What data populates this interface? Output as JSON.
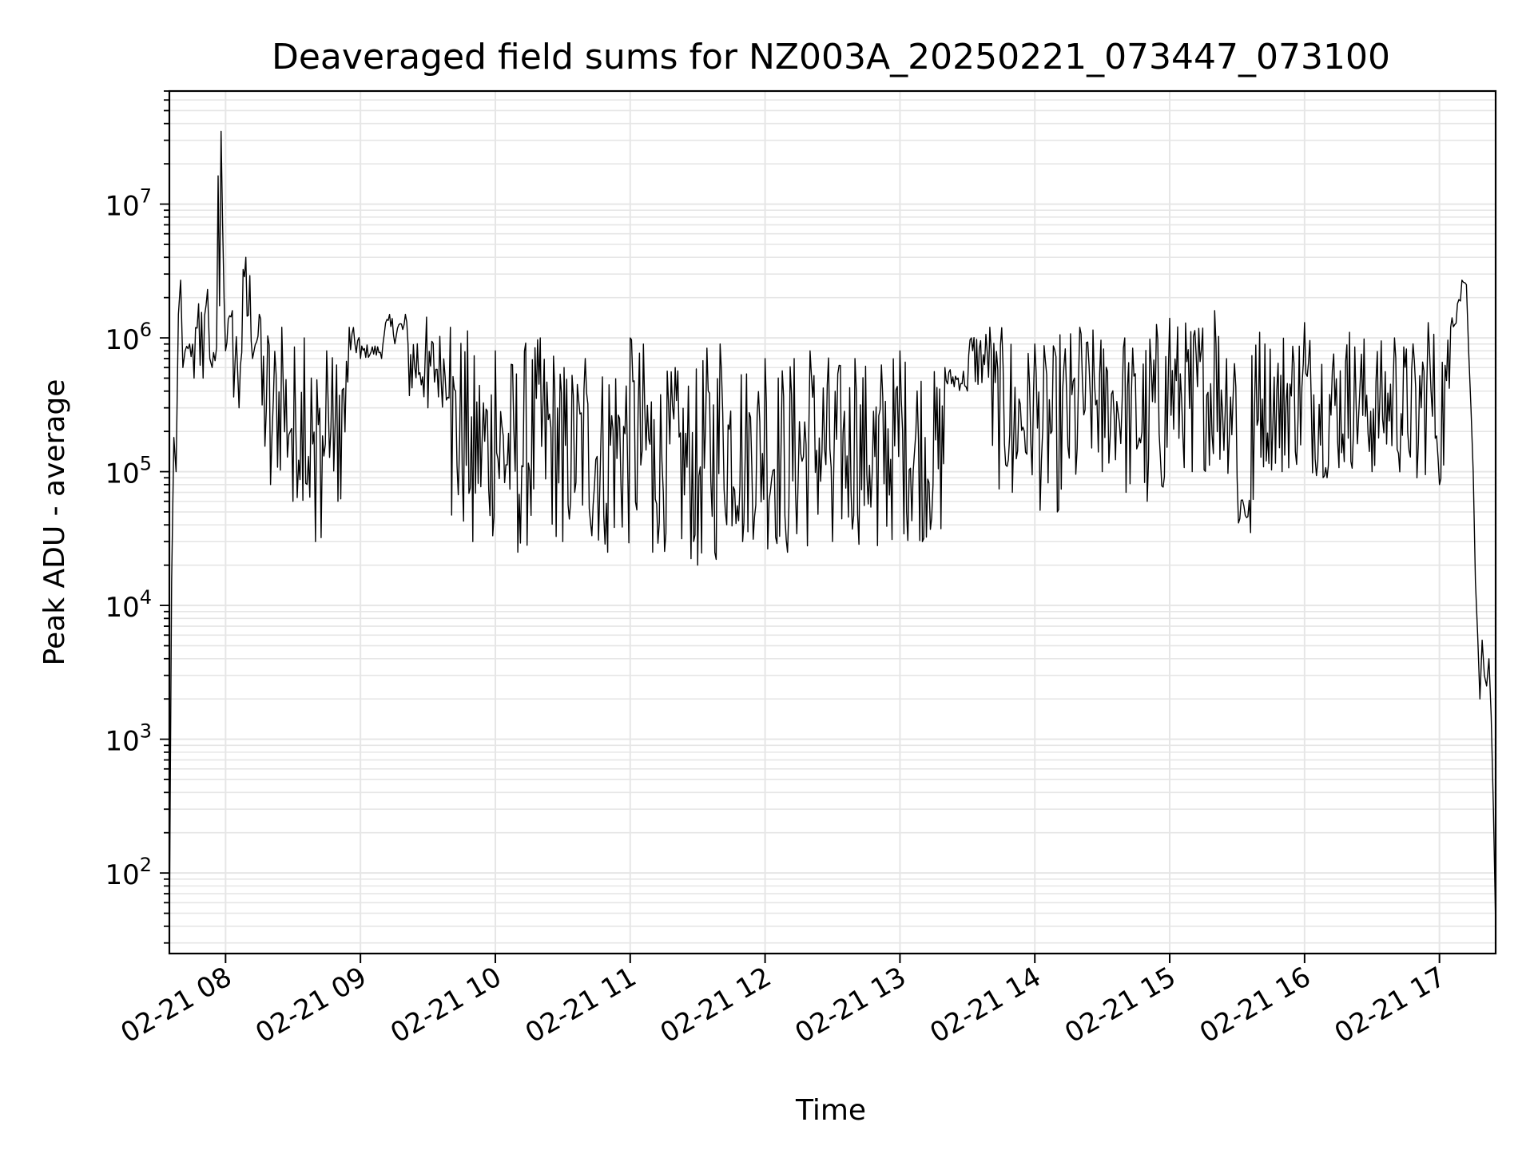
{
  "chart_data": {
    "type": "line",
    "title": "Deaveraged field sums for NZ003A_20250221_073447_073100",
    "xlabel": "Time",
    "ylabel": "Peak ADU - average",
    "yscale": "log",
    "ylim": [
      25,
      70000000
    ],
    "xlim": [
      "02-21 07:35",
      "02-21 17:25"
    ],
    "grid": true,
    "line_color": "#000000",
    "grid_color": "#e6e6e6",
    "xticks": [
      {
        "label": "02-21 08",
        "value": "02-21 08:00"
      },
      {
        "label": "02-21 09",
        "value": "02-21 09:00"
      },
      {
        "label": "02-21 10",
        "value": "02-21 10:00"
      },
      {
        "label": "02-21 11",
        "value": "02-21 11:00"
      },
      {
        "label": "02-21 12",
        "value": "02-21 12:00"
      },
      {
        "label": "02-21 13",
        "value": "02-21 13:00"
      },
      {
        "label": "02-21 14",
        "value": "02-21 14:00"
      },
      {
        "label": "02-21 15",
        "value": "02-21 15:00"
      },
      {
        "label": "02-21 16",
        "value": "02-21 16:00"
      },
      {
        "label": "02-21 17",
        "value": "02-21 17:00"
      }
    ],
    "yticks": [
      {
        "base": "10",
        "exp": "2",
        "value": 100
      },
      {
        "base": "10",
        "exp": "3",
        "value": 1000
      },
      {
        "base": "10",
        "exp": "4",
        "value": 10000
      },
      {
        "base": "10",
        "exp": "5",
        "value": 100000
      },
      {
        "base": "10",
        "exp": "6",
        "value": 1000000
      },
      {
        "base": "10",
        "exp": "7",
        "value": 10000000
      }
    ],
    "series": [
      {
        "x": [
          "02-21 07:35",
          "02-21 07:36",
          "02-21 07:37",
          "02-21 07:38",
          "02-21 07:39",
          "02-21 07:40",
          "02-21 07:41",
          "02-21 07:42",
          "02-21 07:44",
          "02-21 07:46",
          "02-21 07:48",
          "02-21 07:50",
          "02-21 07:52",
          "02-21 07:53",
          "02-21 07:54",
          "02-21 07:56",
          "02-21 07:58",
          "02-21 08:00",
          "02-21 08:03",
          "02-21 08:06",
          "02-21 08:09",
          "02-21 08:12",
          "02-21 08:15",
          "02-21 08:20",
          "02-21 08:25",
          "02-21 08:30",
          "02-21 08:35",
          "02-21 08:40",
          "02-21 08:45",
          "02-21 08:50",
          "02-21 08:55",
          "02-21 09:00",
          "02-21 09:10",
          "02-21 09:20",
          "02-21 09:30",
          "02-21 09:40",
          "02-21 09:50",
          "02-21 10:00",
          "02-21 10:10",
          "02-21 10:20",
          "02-21 10:30",
          "02-21 10:40",
          "02-21 10:50",
          "02-21 11:00",
          "02-21 11:10",
          "02-21 11:20",
          "02-21 11:30",
          "02-21 11:40",
          "02-21 11:50",
          "02-21 12:00",
          "02-21 12:10",
          "02-21 12:20",
          "02-21 12:30",
          "02-21 12:40",
          "02-21 12:50",
          "02-21 13:00",
          "02-21 13:10",
          "02-21 13:20",
          "02-21 13:30",
          "02-21 13:40",
          "02-21 13:50",
          "02-21 14:00",
          "02-21 14:10",
          "02-21 14:20",
          "02-21 14:30",
          "02-21 14:40",
          "02-21 14:50",
          "02-21 15:00",
          "02-21 15:10",
          "02-21 15:20",
          "02-21 15:30",
          "02-21 15:36",
          "02-21 15:40",
          "02-21 15:50",
          "02-21 16:00",
          "02-21 16:10",
          "02-21 16:20",
          "02-21 16:30",
          "02-21 16:40",
          "02-21 16:50",
          "02-21 16:55",
          "02-21 17:00",
          "02-21 17:05",
          "02-21 17:08",
          "02-21 17:10",
          "02-21 17:12",
          "02-21 17:13",
          "02-21 17:14",
          "02-21 17:15",
          "02-21 17:16",
          "02-21 17:17",
          "02-21 17:18",
          "02-21 17:19",
          "02-21 17:20",
          "02-21 17:21",
          "02-21 17:22",
          "02-21 17:23",
          "02-21 17:24",
          "02-21 17:25"
        ],
        "y": [
          40,
          15000,
          180000,
          100000,
          1500000,
          2700000,
          600000,
          800000,
          900000,
          500000,
          1800000,
          500000,
          2300000,
          700000,
          600000,
          850000,
          35000000,
          800000,
          1600000,
          300000,
          4000000,
          700000,
          1500000,
          80000,
          1200000,
          60000,
          1000000,
          30000,
          800000,
          60000,
          1200000,
          700000,
          900000,
          1500000,
          300000,
          1200000,
          30000,
          800000,
          25000,
          1000000,
          30000,
          700000,
          25000,
          1000000,
          25000,
          600000,
          20000,
          900000,
          30000,
          700000,
          25000,
          800000,
          30000,
          700000,
          28000,
          800000,
          30000,
          600000,
          400000,
          1200000,
          70000,
          900000,
          50000,
          1200000,
          100000,
          1000000,
          60000,
          1400000,
          100000,
          1600000,
          90000,
          35000,
          1100000,
          100000,
          1300000,
          90000,
          1100000,
          100000,
          1000000,
          90000,
          1300000,
          80000,
          1200000,
          1800000,
          2700000,
          2500000,
          800000,
          300000,
          100000,
          15000,
          6000,
          2000,
          5500,
          3000,
          2500,
          4000,
          1500,
          300,
          40
        ]
      }
    ]
  }
}
